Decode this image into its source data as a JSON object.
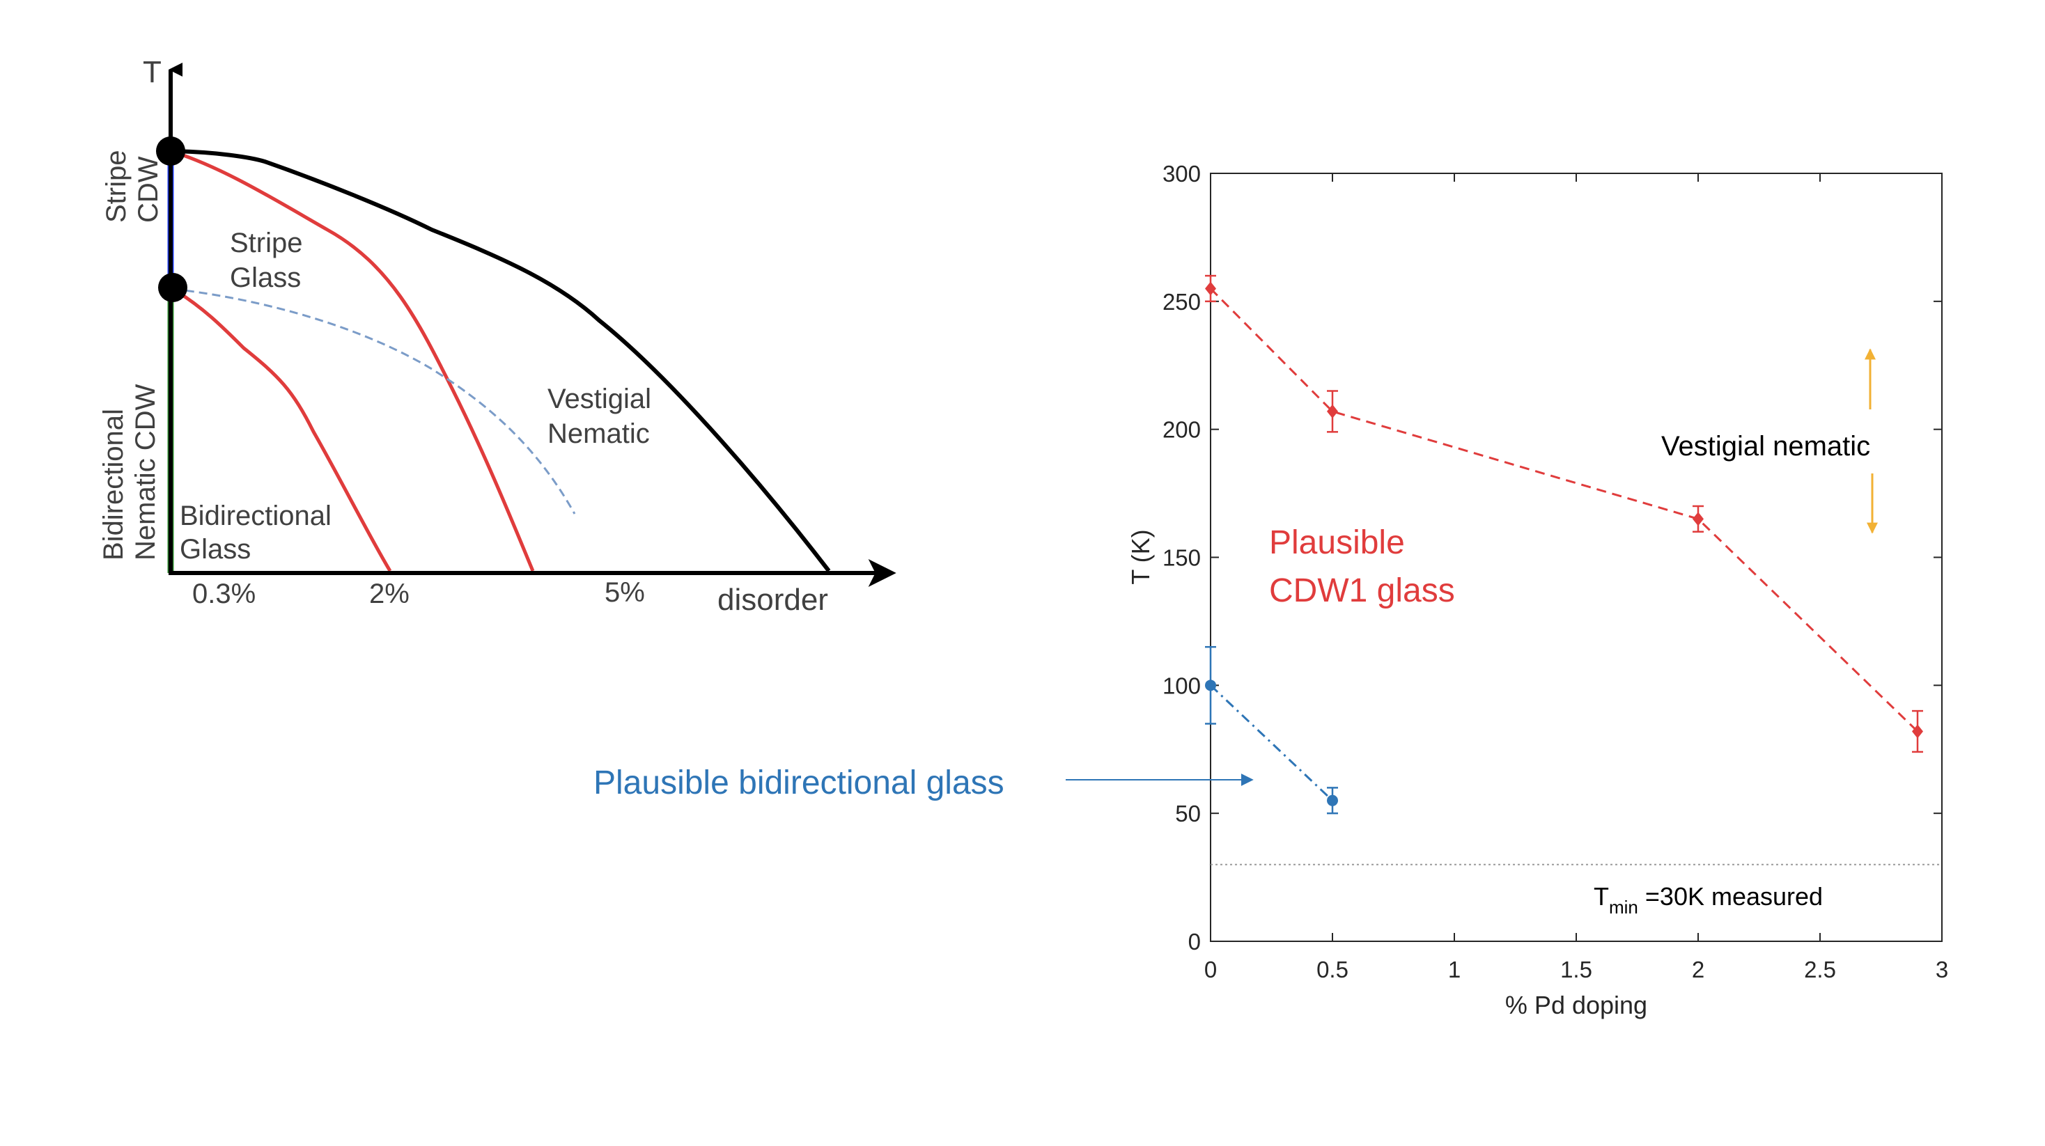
{
  "chart_data": [
    {
      "type": "diagram",
      "axes": {
        "y_label": "T",
        "x_label": "disorder"
      },
      "x_tick_labels": [
        "0.3%",
        "2%",
        "5%"
      ],
      "regions": {
        "stripe_cdw": "Stripe CDW",
        "bidirectional_nematic_cdw": "Bidirectional Nematic CDW",
        "stripe_glass": "Stripe Glass",
        "bidirectional_glass": "Bidirectional Glass",
        "vestigial_nematic": "Vestigial Nematic"
      },
      "colors": {
        "transition_curve": "#000000",
        "glass_curve": "#e03c3c",
        "stripe_segment": "#1f3cff",
        "bidirectional_segment": "#2e8b2e",
        "dashed_crossover": "#7b9cc8"
      }
    },
    {
      "type": "line",
      "xlabel": "% Pd doping",
      "ylabel": "T (K)",
      "xlim": [
        0,
        3
      ],
      "ylim": [
        0,
        300
      ],
      "xticks": [
        0,
        0.5,
        1,
        1.5,
        2,
        2.5,
        3
      ],
      "yticks": [
        0,
        50,
        100,
        150,
        200,
        250,
        300
      ],
      "series": [
        {
          "color": "#e03c3c",
          "marker": "diamond",
          "line": "dashed",
          "points": [
            {
              "x": 0,
              "y": 255,
              "err": 5
            },
            {
              "x": 0.5,
              "y": 207,
              "err": 8
            },
            {
              "x": 2,
              "y": 165,
              "err": 5
            },
            {
              "x": 2.9,
              "y": 82,
              "err": 8
            }
          ]
        },
        {
          "color": "#2e75b6",
          "marker": "circle",
          "line": "dashdot",
          "points": [
            {
              "x": 0,
              "y": 100,
              "err": 15
            },
            {
              "x": 0.5,
              "y": 55,
              "err": 5
            }
          ]
        }
      ],
      "reference_line": {
        "y": 30,
        "label_main": "T",
        "label_sub": "min",
        "label_rest": " =30K measured"
      },
      "annotations": {
        "vestigial": "Vestigial nematic",
        "cdw1_line1": "Plausible",
        "cdw1_line2": "CDW1 glass",
        "bidirectional": "Plausible bidirectional glass"
      },
      "annotation_colors": {
        "vestigial_arrows": "#f2b134",
        "pointer_arrow": "#2e75b6"
      }
    }
  ]
}
